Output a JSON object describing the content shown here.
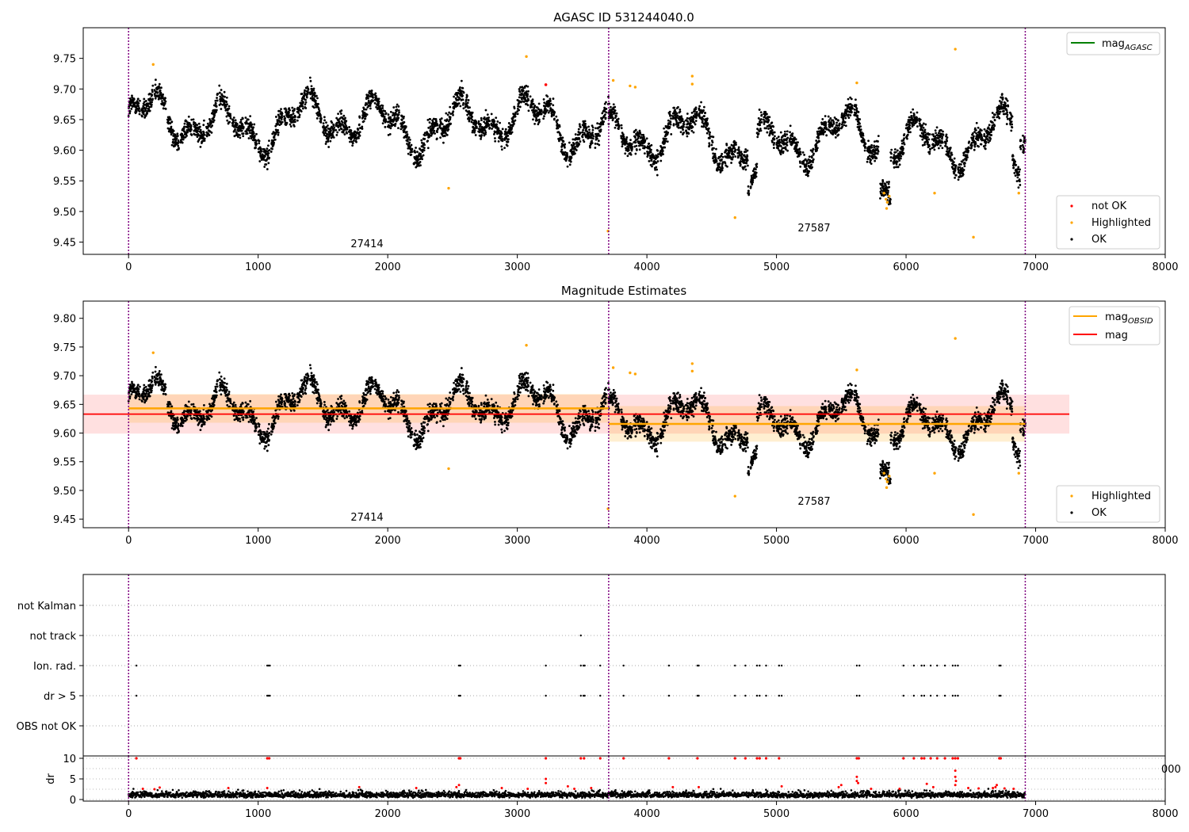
{
  "chart_data": [
    {
      "type": "scatter",
      "title": "AGASC ID 531244040.0",
      "xlim": [
        -350,
        8000
      ],
      "ylim": [
        9.43,
        9.8
      ],
      "x_ticks": [
        0,
        1000,
        2000,
        3000,
        4000,
        5000,
        6000,
        7000,
        8000
      ],
      "y_ticks": [
        9.45,
        9.5,
        9.55,
        9.6,
        9.65,
        9.7,
        9.75
      ],
      "obsid_boundaries": [
        0,
        3705,
        6920
      ],
      "obsid_labels": [
        {
          "text": "27414",
          "x": 1850,
          "y": 9.44
        },
        {
          "text": "27587",
          "x": 5310,
          "y": 9.465
        }
      ],
      "line_legend": [
        {
          "name": "mag$_{AGASC}$",
          "label": "mag",
          "sub": "AGASC",
          "color": "#008000"
        }
      ],
      "legend": [
        {
          "name": "not OK",
          "color": "#ff0000"
        },
        {
          "name": "Highlighted",
          "color": "#ffa500"
        },
        {
          "name": "OK",
          "color": "#000000"
        }
      ],
      "highlighted_points": [
        [
          190,
          9.74
        ],
        [
          2470,
          9.538
        ],
        [
          3070,
          9.753
        ],
        [
          3700,
          9.468
        ],
        [
          3740,
          9.714
        ],
        [
          3870,
          9.705
        ],
        [
          3910,
          9.703
        ],
        [
          4350,
          9.721
        ],
        [
          4350,
          9.708
        ],
        [
          4680,
          9.49
        ],
        [
          5620,
          9.71
        ],
        [
          5830,
          9.53
        ],
        [
          5845,
          9.52
        ],
        [
          5855,
          9.515
        ],
        [
          5870,
          9.525
        ],
        [
          5850,
          9.505
        ],
        [
          6220,
          9.53
        ],
        [
          6380,
          9.765
        ],
        [
          6520,
          9.458
        ],
        [
          6870,
          9.53
        ]
      ],
      "not_ok_points": [
        [
          3220,
          9.707
        ]
      ]
    },
    {
      "type": "scatter",
      "title": "Magnitude Estimates",
      "xlim": [
        -350,
        8000
      ],
      "ylim": [
        9.435,
        9.83
      ],
      "x_ticks": [
        0,
        1000,
        2000,
        3000,
        4000,
        5000,
        6000,
        7000,
        8000
      ],
      "y_ticks": [
        9.45,
        9.5,
        9.55,
        9.6,
        9.65,
        9.7,
        9.75,
        9.8
      ],
      "obsid_boundaries": [
        0,
        3705,
        6920
      ],
      "obsid_labels": [
        {
          "text": "27414",
          "x": 1850,
          "y": 9.445
        },
        {
          "text": "27587",
          "x": 5310,
          "y": 9.475
        }
      ],
      "line_legend": [
        {
          "name": "mag$_{OBSID}$",
          "label": "mag",
          "sub": "OBSID",
          "color": "#ffa500"
        },
        {
          "name": "mag",
          "label": "mag",
          "sub": "",
          "color": "#ff0000"
        }
      ],
      "legend": [
        {
          "name": "Highlighted",
          "color": "#ffa500"
        },
        {
          "name": "OK",
          "color": "#000000"
        }
      ],
      "mag": {
        "value": 9.633,
        "band": [
          9.599,
          9.667
        ],
        "x": [
          -350,
          7260
        ]
      },
      "mag_obsid": [
        {
          "x": [
            0,
            3705
          ],
          "value": 9.643,
          "band": [
            9.618,
            9.668
          ]
        },
        {
          "x": [
            3705,
            6920
          ],
          "value": 9.616,
          "band": [
            9.585,
            9.647
          ]
        }
      ],
      "highlighted_points": [
        [
          190,
          9.74
        ],
        [
          2470,
          9.538
        ],
        [
          3070,
          9.753
        ],
        [
          3700,
          9.468
        ],
        [
          3740,
          9.714
        ],
        [
          3870,
          9.705
        ],
        [
          3910,
          9.703
        ],
        [
          4350,
          9.721
        ],
        [
          4350,
          9.708
        ],
        [
          4680,
          9.49
        ],
        [
          5620,
          9.71
        ],
        [
          5830,
          9.53
        ],
        [
          5845,
          9.52
        ],
        [
          5855,
          9.515
        ],
        [
          5870,
          9.525
        ],
        [
          5850,
          9.505
        ],
        [
          6220,
          9.53
        ],
        [
          6380,
          9.765
        ],
        [
          6520,
          9.458
        ],
        [
          6870,
          9.53
        ]
      ]
    },
    {
      "type": "scatter",
      "title": "",
      "xlim": [
        -350,
        8000
      ],
      "categories": [
        "not Kalman",
        "not track",
        "Ion. rad.",
        "dr > 5",
        "OBS not OK"
      ],
      "not_track_x": [
        3490
      ],
      "flag_x": [
        60,
        1070,
        1080,
        1090,
        2550,
        2560,
        3220,
        3490,
        3510,
        3520,
        3640,
        3820,
        4170,
        4390,
        4400,
        4680,
        4760,
        4850,
        4870,
        4920,
        5020,
        5040,
        5620,
        5640,
        5980,
        6060,
        6120,
        6140,
        6190,
        6240,
        6300,
        6360,
        6380,
        6400,
        6720,
        6730
      ]
    },
    {
      "type": "scatter",
      "title": "",
      "xlim": [
        -350,
        8000
      ],
      "ylim": [
        -0.5,
        10.5
      ],
      "ylabel": "dr",
      "y_ticks": [
        0,
        5,
        10
      ],
      "x_ticks": [
        0,
        1000,
        2000,
        3000,
        4000,
        5000,
        6000,
        7000,
        8000
      ],
      "x_tick_labels": [
        "0",
        "1000",
        "2000",
        "3000",
        "4000",
        "5000",
        "6000",
        "7000",
        "8000"
      ],
      "overflow_label": "000",
      "red_high_points": [
        [
          60,
          10
        ],
        [
          1070,
          10
        ],
        [
          1085,
          10
        ],
        [
          2550,
          10
        ],
        [
          2560,
          10
        ],
        [
          3220,
          10
        ],
        [
          3490,
          10
        ],
        [
          3515,
          10
        ],
        [
          3640,
          10
        ],
        [
          3820,
          10
        ],
        [
          4170,
          10
        ],
        [
          4390,
          10
        ],
        [
          4680,
          10
        ],
        [
          4760,
          10
        ],
        [
          4850,
          10
        ],
        [
          4870,
          10
        ],
        [
          4920,
          10
        ],
        [
          5020,
          10
        ],
        [
          5620,
          10
        ],
        [
          5635,
          10
        ],
        [
          5980,
          10
        ],
        [
          6060,
          10
        ],
        [
          6120,
          10
        ],
        [
          6140,
          10
        ],
        [
          6190,
          10
        ],
        [
          6240,
          10
        ],
        [
          6300,
          10
        ],
        [
          6360,
          10
        ],
        [
          6380,
          10
        ],
        [
          6400,
          10
        ],
        [
          6720,
          10
        ],
        [
          6730,
          10
        ]
      ],
      "red_mid_points": [
        [
          5620,
          5.5
        ],
        [
          5620,
          4.5
        ],
        [
          5630,
          4.0
        ],
        [
          6380,
          7.0
        ],
        [
          6380,
          5.5
        ],
        [
          6385,
          4.5
        ],
        [
          6380,
          3.5
        ],
        [
          3220,
          5.0
        ],
        [
          3220,
          4.0
        ],
        [
          2550,
          3.5
        ],
        [
          2530,
          3.0
        ],
        [
          6690,
          3.0
        ],
        [
          6700,
          3.5
        ],
        [
          6670,
          2.8
        ],
        [
          5040,
          3.2
        ],
        [
          4400,
          3.0
        ],
        [
          1070,
          2.8
        ],
        [
          1780,
          3.0
        ],
        [
          2220,
          2.8
        ],
        [
          2880,
          2.8
        ],
        [
          3080,
          2.6
        ],
        [
          3390,
          3.2
        ],
        [
          3440,
          2.6
        ],
        [
          3570,
          2.8
        ],
        [
          4200,
          3.0
        ],
        [
          5480,
          3.0
        ],
        [
          5500,
          3.5
        ],
        [
          5730,
          2.6
        ],
        [
          5950,
          2.6
        ],
        [
          6160,
          3.8
        ],
        [
          6210,
          3.0
        ],
        [
          6480,
          2.8
        ],
        [
          6560,
          2.7
        ],
        [
          6760,
          2.7
        ],
        [
          6830,
          2.6
        ],
        [
          770,
          2.8
        ],
        [
          240,
          2.9
        ],
        [
          200,
          2.5
        ],
        [
          110,
          2.6
        ]
      ]
    }
  ]
}
